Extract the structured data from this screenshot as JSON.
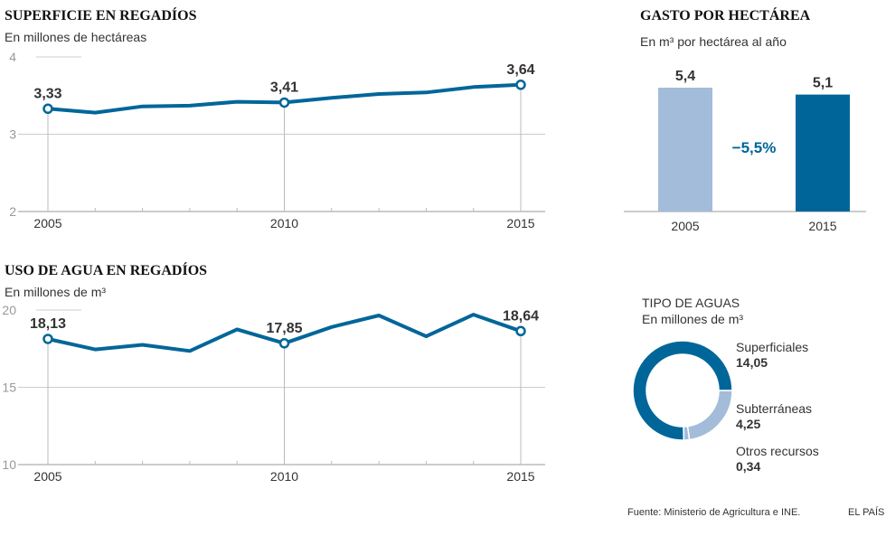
{
  "chart_data": [
    {
      "id": "superficie",
      "type": "line",
      "title": "SUPERFICIE EN REGADÍOS",
      "subtitle": "En millones de hectáreas",
      "x": [
        2005,
        2006,
        2007,
        2008,
        2009,
        2010,
        2011,
        2012,
        2013,
        2014,
        2015
      ],
      "values": [
        3.33,
        3.28,
        3.36,
        3.37,
        3.42,
        3.41,
        3.47,
        3.52,
        3.54,
        3.61,
        3.64
      ],
      "labeled_points": [
        {
          "x": 2005,
          "label": "3,33"
        },
        {
          "x": 2010,
          "label": "3,41"
        },
        {
          "x": 2015,
          "label": "3,64"
        }
      ],
      "ylim": [
        2,
        4
      ],
      "yticks": [
        {
          "v": 2,
          "label": "2"
        },
        {
          "v": 3,
          "label": "3"
        },
        {
          "v": 4,
          "label": "4"
        }
      ],
      "xticks": [
        {
          "v": 2005,
          "label": "2005"
        },
        {
          "v": 2010,
          "label": "2010"
        },
        {
          "v": 2015,
          "label": "2015"
        }
      ],
      "xlabel": "",
      "ylabel": "",
      "color": "#006699",
      "grid": true
    },
    {
      "id": "uso",
      "type": "line",
      "title": "USO DE AGUA EN REGADÍOS",
      "subtitle": "En millones de m³",
      "x": [
        2005,
        2006,
        2007,
        2008,
        2009,
        2010,
        2011,
        2012,
        2013,
        2014,
        2015
      ],
      "values": [
        18.13,
        17.45,
        17.75,
        17.35,
        18.75,
        17.85,
        18.9,
        19.65,
        18.3,
        19.7,
        18.64
      ],
      "labeled_points": [
        {
          "x": 2005,
          "label": "18,13"
        },
        {
          "x": 2010,
          "label": "17,85"
        },
        {
          "x": 2015,
          "label": "18,64"
        }
      ],
      "ylim": [
        10,
        20
      ],
      "yticks": [
        {
          "v": 10,
          "label": "10"
        },
        {
          "v": 15,
          "label": "15"
        },
        {
          "v": 20,
          "label": "20"
        }
      ],
      "xticks": [
        {
          "v": 2005,
          "label": "2005"
        },
        {
          "v": 2010,
          "label": "2010"
        },
        {
          "v": 2015,
          "label": "2015"
        }
      ],
      "xlabel": "",
      "ylabel": "",
      "color": "#006699",
      "grid": true
    },
    {
      "id": "gasto",
      "type": "bar",
      "title": "GASTO POR HECTÁREA",
      "subtitle": "En m³ por hectárea al año",
      "categories": [
        "2005",
        "2015"
      ],
      "values": [
        5.4,
        5.1
      ],
      "value_labels": [
        "5,4",
        "5,1"
      ],
      "colors": [
        "#a3bcd9",
        "#006699"
      ],
      "annotation": "−5,5%",
      "annotation_color": "#006699",
      "ylim": [
        0,
        5.4
      ]
    },
    {
      "id": "tipo",
      "type": "pie",
      "title": "TIPO DE AGUAS",
      "subtitle": "En millones de m³",
      "donut": true,
      "slices": [
        {
          "name": "Superficiales",
          "value": 14.05,
          "label": "14,05",
          "color": "#006699"
        },
        {
          "name": "Subterráneas",
          "value": 4.25,
          "label": "4,25",
          "color": "#a3bcd9"
        },
        {
          "name": "Otros recursos",
          "value": 0.34,
          "label": "0,34",
          "color": "#a3bcd9"
        }
      ]
    }
  ],
  "footer": {
    "source": "Fuente: Ministerio de Agricultura e INE.",
    "brand": "EL PAÍS"
  }
}
